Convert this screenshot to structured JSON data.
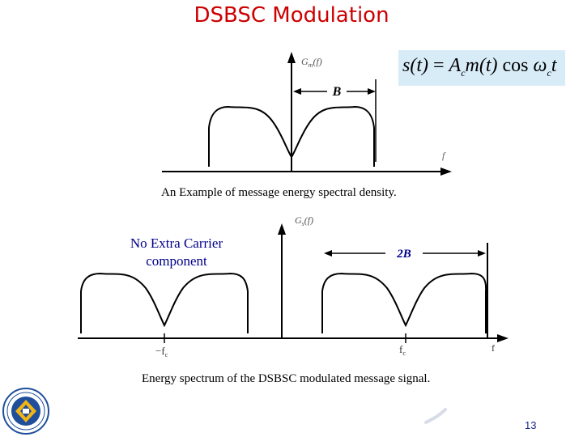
{
  "slide": {
    "title": "DSBSC Modulation",
    "page_number": "13"
  },
  "formula": {
    "lhs": "s(t)",
    "eq": " = ",
    "amp": "A",
    "amp_sub": "c",
    "msg": "m(t)",
    "cos": " cos ",
    "omega": "ω",
    "omega_sub": "c",
    "t": "t"
  },
  "message_spectrum": {
    "y_label_main": "G",
    "y_label_sub": "m",
    "y_label_arg": "(f)",
    "x_label": "f",
    "bandwidth_label": "B",
    "caption": "An Example of message energy spectral density."
  },
  "modulated_spectrum": {
    "y_label_main": "G",
    "y_label_sub": "s",
    "y_label_arg": "(f)",
    "x_label": "f",
    "neg_carrier_label": "−f",
    "neg_carrier_sub": "c",
    "pos_carrier_label": "f",
    "pos_carrier_sub": "c",
    "bandwidth_label": "2B",
    "note_line1": "No Extra Carrier",
    "note_line2": "component",
    "caption": "Energy spectrum of the DSBSC modulated message signal."
  },
  "colors": {
    "title": "#cc0000",
    "note": "#00008b",
    "bandwidth_2b": "#00008b",
    "formula_bg": "#d8ecf8"
  }
}
